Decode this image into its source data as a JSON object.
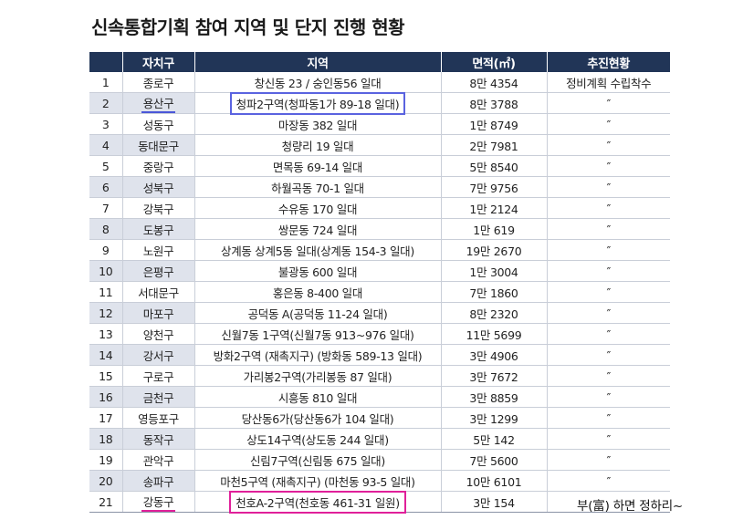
{
  "title": "신속통합기획 참여 지역 및 단지 진행 현황",
  "headers": [
    "",
    "자치구",
    "지역",
    "면적(㎡)",
    "추진현황"
  ],
  "rows": [
    {
      "no": "1",
      "gu": "종로구",
      "area_name": "창신동 23 / 숭인동56 일대",
      "size": "8만 4354",
      "status": "정비계획 수립착수"
    },
    {
      "no": "2",
      "gu": "용산구",
      "area_name": "청파2구역(청파동1가 89-18 일대)",
      "size": "8만 3788",
      "status": "″"
    },
    {
      "no": "3",
      "gu": "성동구",
      "area_name": "마장동 382 일대",
      "size": "1만 8749",
      "status": "″"
    },
    {
      "no": "4",
      "gu": "동대문구",
      "area_name": "청량리 19 일대",
      "size": "2만 7981",
      "status": "″"
    },
    {
      "no": "5",
      "gu": "중랑구",
      "area_name": "면목동 69-14 일대",
      "size": "5만 8540",
      "status": "″"
    },
    {
      "no": "6",
      "gu": "성북구",
      "area_name": "하월곡동 70-1 일대",
      "size": "7만 9756",
      "status": "″"
    },
    {
      "no": "7",
      "gu": "강북구",
      "area_name": "수유동 170 일대",
      "size": "1만 2124",
      "status": "″"
    },
    {
      "no": "8",
      "gu": "도봉구",
      "area_name": "쌍문동 724 일대",
      "size": "1만 619",
      "status": "″"
    },
    {
      "no": "9",
      "gu": "노원구",
      "area_name": "상계동 상계5동 일대(상계동 154-3 일대)",
      "size": "19만 2670",
      "status": "″"
    },
    {
      "no": "10",
      "gu": "은평구",
      "area_name": "불광동 600 일대",
      "size": "1만 3004",
      "status": "″"
    },
    {
      "no": "11",
      "gu": "서대문구",
      "area_name": "홍은동 8-400 일대",
      "size": "7만 1860",
      "status": "″"
    },
    {
      "no": "12",
      "gu": "마포구",
      "area_name": "공덕동 A(공덕동 11-24 일대)",
      "size": "8만 2320",
      "status": "″"
    },
    {
      "no": "13",
      "gu": "양천구",
      "area_name": "신월7동 1구역(신월7동 913~976 일대)",
      "size": "11만 5699",
      "status": "″"
    },
    {
      "no": "14",
      "gu": "강서구",
      "area_name": "방화2구역 (재촉지구) (방화동 589-13 일대)",
      "size": "3만 4906",
      "status": "″"
    },
    {
      "no": "15",
      "gu": "구로구",
      "area_name": "가리봉2구역(가리봉동 87 일대)",
      "size": "3만 7672",
      "status": "″"
    },
    {
      "no": "16",
      "gu": "금천구",
      "area_name": "시흥동 810 일대",
      "size": "3만 8859",
      "status": "″"
    },
    {
      "no": "17",
      "gu": "영등포구",
      "area_name": "당산동6가(당산동6가 104 일대)",
      "size": "3만 1299",
      "status": "″"
    },
    {
      "no": "18",
      "gu": "동작구",
      "area_name": "상도14구역(상도동 244 일대)",
      "size": "5만 142",
      "status": "″"
    },
    {
      "no": "19",
      "gu": "관악구",
      "area_name": "신림7구역(신림동 675 일대)",
      "size": "7만 5600",
      "status": "″"
    },
    {
      "no": "20",
      "gu": "송파구",
      "area_name": "마천5구역 (재촉지구) (마천동 93-5 일대)",
      "size": "10만 6101",
      "status": "″"
    },
    {
      "no": "21",
      "gu": "강동구",
      "area_name": "천호A-2구역(천호동 461-31 일원)",
      "size": "3만 154",
      "status": ""
    }
  ],
  "annotation_note": "부(富) 하면 정하리~",
  "colors": {
    "header_bg": "#213557",
    "shaded_bg": "#dfe3ec",
    "blue_mark": "#5a63e0",
    "pink_mark": "#e0209a"
  }
}
